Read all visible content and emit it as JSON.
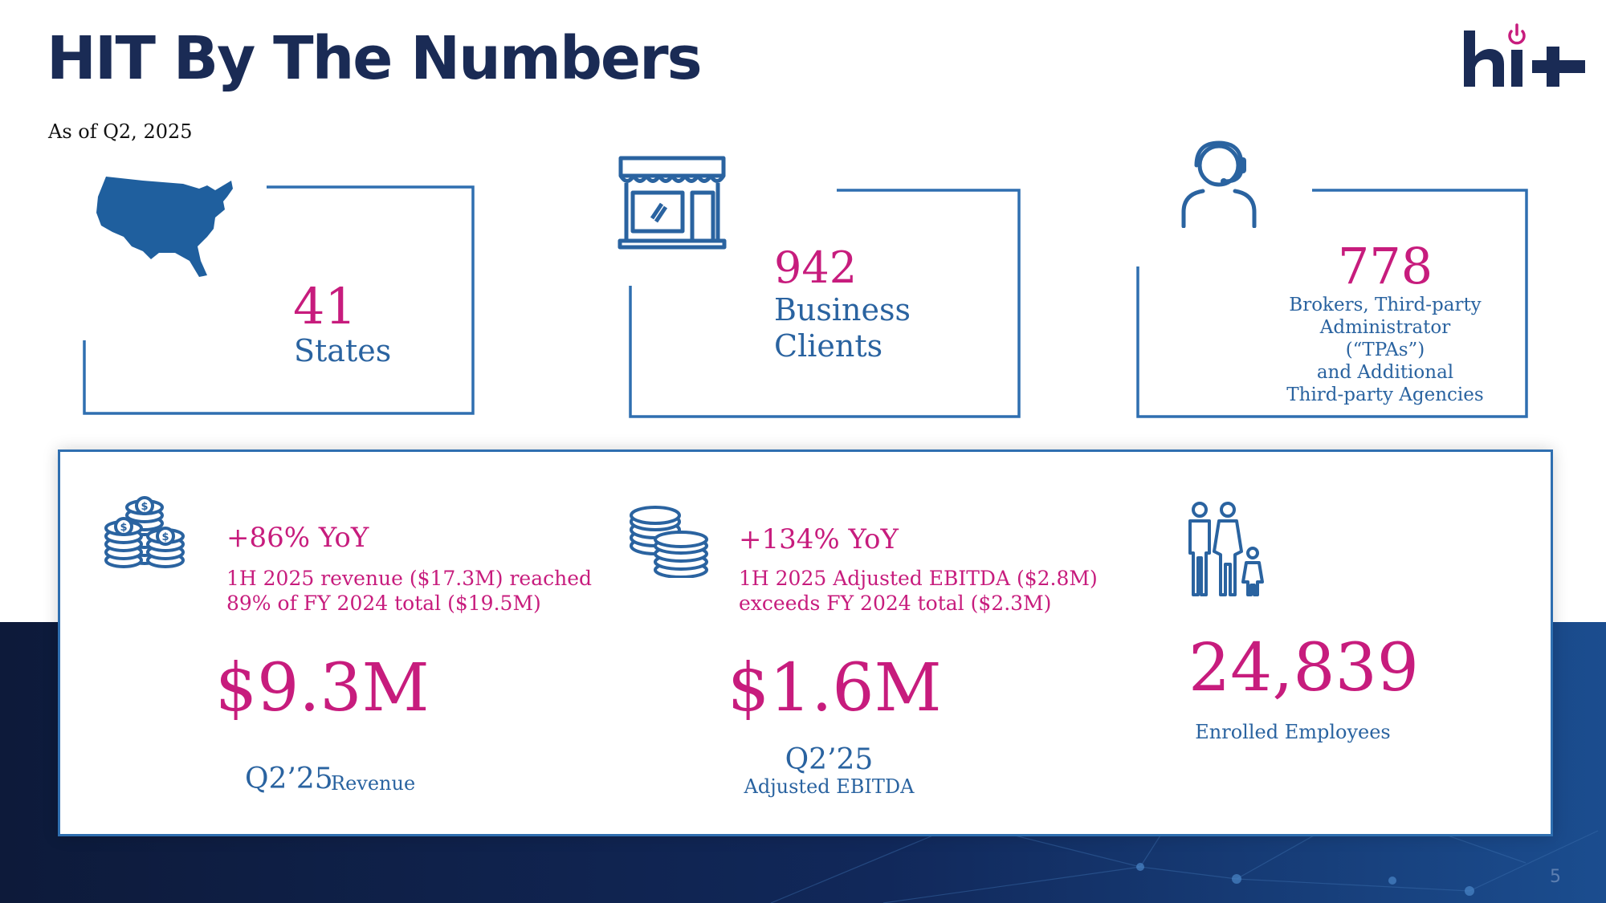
{
  "header": {
    "title": "HIT By The Numbers",
    "subtitle": "As of Q2, 2025",
    "logo_text": "hi+"
  },
  "cards": [
    {
      "icon": "usa-map-icon",
      "value": "41",
      "label": "States"
    },
    {
      "icon": "storefront-icon",
      "value": "942",
      "label": "Business Clients"
    },
    {
      "icon": "headset-agent-icon",
      "value": "778",
      "label_lines": [
        "Brokers, Third-party",
        "Administrator",
        "(“TPAs”)",
        "and Additional",
        "Third-party Agencies"
      ]
    }
  ],
  "panel": {
    "revenue": {
      "icon": "coin-stacks-icon",
      "yoy": "+86% YoY",
      "desc_lines": [
        "1H 2025 revenue ($17.3M) reached",
        "89% of FY 2024 total ($19.5M)"
      ],
      "big_value": "$9.3M",
      "period": "Q2’25",
      "metric": "Revenue"
    },
    "ebitda": {
      "icon": "coins-icon",
      "yoy": "+134% YoY",
      "desc_lines": [
        "1H 2025 Adjusted EBITDA ($2.8M)",
        "exceeds FY 2024 total ($2.3M)"
      ],
      "big_value": "$1.6M",
      "period": "Q2’25",
      "metric": "Adjusted EBITDA"
    },
    "employees": {
      "icon": "family-icon",
      "big_value": "24,839",
      "metric": "Enrolled Employees"
    }
  },
  "footer": {
    "page_number": "5"
  },
  "colors": {
    "title": "#1a2b55",
    "accent_magenta": "#c71c7d",
    "accent_blue": "#2a63a0",
    "frame_blue": "#2f6fb0",
    "band_dark": "#0d1a3a"
  }
}
